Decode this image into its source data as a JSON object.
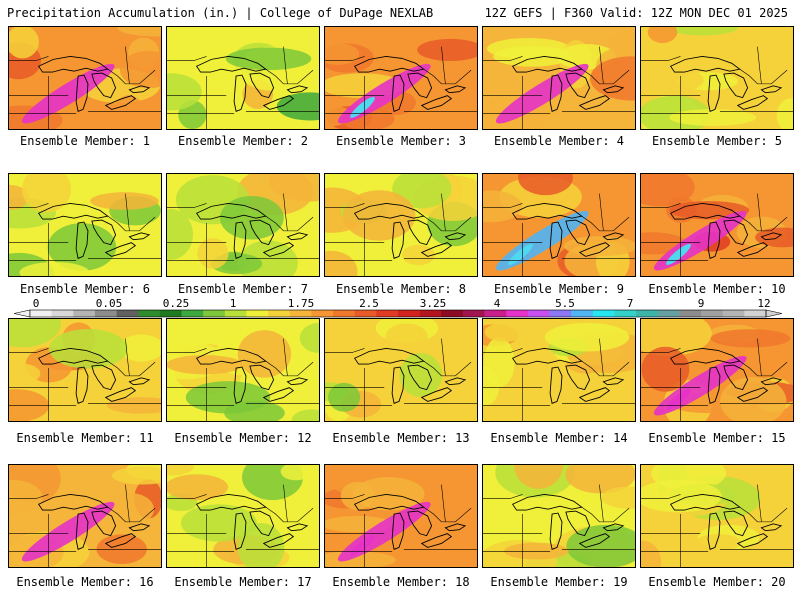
{
  "header": {
    "left": "Precipitation Accumulation (in.) | College of DuPage NEXLAB",
    "right": "12Z GEFS | F360 Valid: 12Z MON DEC 01 2025"
  },
  "members": [
    {
      "label": "Ensemble Member: 1",
      "intensity": 0.75
    },
    {
      "label": "Ensemble Member: 2",
      "intensity": 0.25
    },
    {
      "label": "Ensemble Member: 3",
      "intensity": 0.85
    },
    {
      "label": "Ensemble Member: 4",
      "intensity": 0.7
    },
    {
      "label": "Ensemble Member: 5",
      "intensity": 0.45
    },
    {
      "label": "Ensemble Member: 6",
      "intensity": 0.3
    },
    {
      "label": "Ensemble Member: 7",
      "intensity": 0.35
    },
    {
      "label": "Ensemble Member: 8",
      "intensity": 0.4
    },
    {
      "label": "Ensemble Member: 9",
      "intensity": 0.9
    },
    {
      "label": "Ensemble Member: 10",
      "intensity": 0.85
    },
    {
      "label": "Ensemble Member: 11",
      "intensity": 0.55
    },
    {
      "label": "Ensemble Member: 12",
      "intensity": 0.35
    },
    {
      "label": "Ensemble Member: 13",
      "intensity": 0.45
    },
    {
      "label": "Ensemble Member: 14",
      "intensity": 0.5
    },
    {
      "label": "Ensemble Member: 15",
      "intensity": 0.8
    },
    {
      "label": "Ensemble Member: 16",
      "intensity": 0.7
    },
    {
      "label": "Ensemble Member: 17",
      "intensity": 0.3
    },
    {
      "label": "Ensemble Member: 18",
      "intensity": 0.8
    },
    {
      "label": "Ensemble Member: 19",
      "intensity": 0.35
    },
    {
      "label": "Ensemble Member: 20",
      "intensity": 0.5
    }
  ],
  "colorbar": {
    "tick_labels": [
      "0",
      "0.05",
      "0.25",
      "1",
      "1.75",
      "2.5",
      "3.25",
      "4",
      "5.5",
      "7",
      "9",
      "12"
    ],
    "colors": [
      "#f0f0f0",
      "#d8d8d8",
      "#b4b4b4",
      "#8c8c8c",
      "#606060",
      "#2e8b2e",
      "#1f7a1f",
      "#3da83d",
      "#7cc83a",
      "#b8e03a",
      "#f0f03a",
      "#f5d23a",
      "#f5b43a",
      "#f59632",
      "#f0782d",
      "#e85a28",
      "#e03c23",
      "#d2231e",
      "#b4141e",
      "#8c0a23",
      "#a01450",
      "#c81e8c",
      "#e632c8",
      "#c850f0",
      "#8c78f5",
      "#50b4f5",
      "#28e6f0",
      "#32d2c8",
      "#3cb4aa",
      "#64a0a0",
      "#8c8c8c",
      "#a0a0a0",
      "#b4b4b4",
      "#d2d2d2"
    ]
  }
}
